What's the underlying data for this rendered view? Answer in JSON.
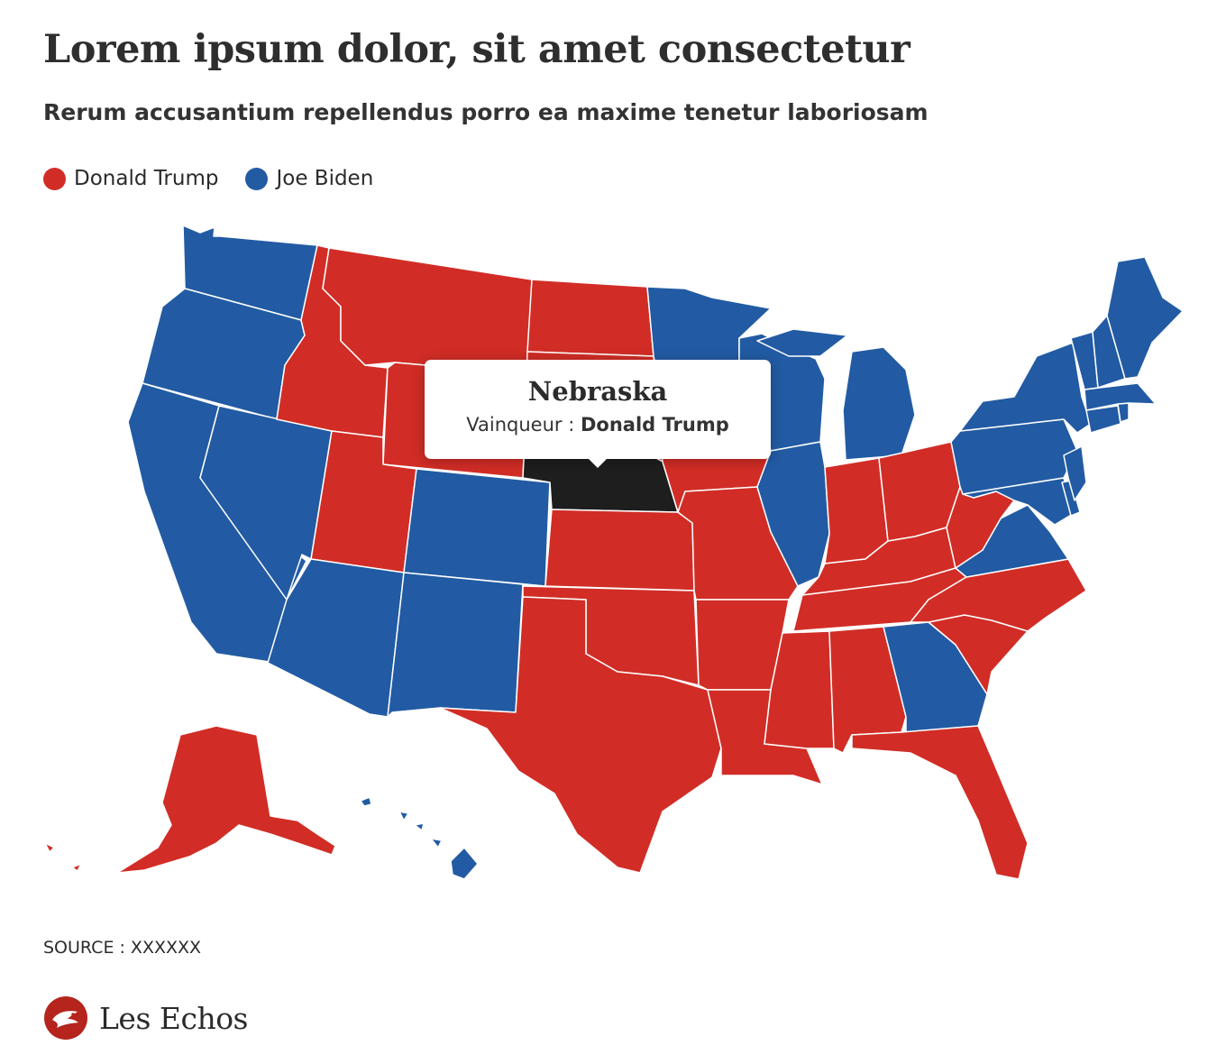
{
  "title": "Lorem ipsum dolor, sit amet consectetur",
  "subtitle": "Rerum accusantium repellendus porro ea maxime tenetur laboriosam",
  "legend": [
    {
      "label": "Donald Trump",
      "color": "#d12d26"
    },
    {
      "label": "Joe Biden",
      "color": "#225ba3"
    }
  ],
  "colors": {
    "trump": "#d12d26",
    "biden": "#225ba3",
    "highlight": "#1e1e1e"
  },
  "tooltip": {
    "state": "Nebraska",
    "winner_label": "Vainqueur :",
    "winner": "Donald Trump"
  },
  "winners": {
    "Washington": "biden",
    "Oregon": "biden",
    "California": "biden",
    "Nevada": "biden",
    "Idaho": "trump",
    "Montana": "trump",
    "Wyoming": "trump",
    "Utah": "trump",
    "Arizona": "biden",
    "Colorado": "biden",
    "New Mexico": "biden",
    "North Dakota": "trump",
    "South Dakota": "trump",
    "Nebraska": "trump",
    "Kansas": "trump",
    "Oklahoma": "trump",
    "Texas": "trump",
    "Minnesota": "biden",
    "Iowa": "trump",
    "Missouri": "trump",
    "Arkansas": "trump",
    "Louisiana": "trump",
    "Wisconsin": "biden",
    "Illinois": "biden",
    "Michigan": "biden",
    "Indiana": "trump",
    "Ohio": "trump",
    "Kentucky": "trump",
    "Tennessee": "trump",
    "Mississippi": "trump",
    "Alabama": "trump",
    "Georgia": "biden",
    "Florida": "trump",
    "South Carolina": "trump",
    "North Carolina": "trump",
    "Virginia": "biden",
    "West Virginia": "trump",
    "Pennsylvania": "biden",
    "New York": "biden",
    "Maine": "biden",
    "Vermont": "biden",
    "New Hampshire": "biden",
    "Massachusetts": "biden",
    "Connecticut": "biden",
    "Rhode Island": "biden",
    "New Jersey": "biden",
    "Delaware": "biden",
    "Maryland": "biden",
    "Alaska": "trump",
    "Hawaii": "biden"
  },
  "highlighted_state": "Nebraska",
  "source": "SOURCE : XXXXXX",
  "brand": "Les Echos"
}
